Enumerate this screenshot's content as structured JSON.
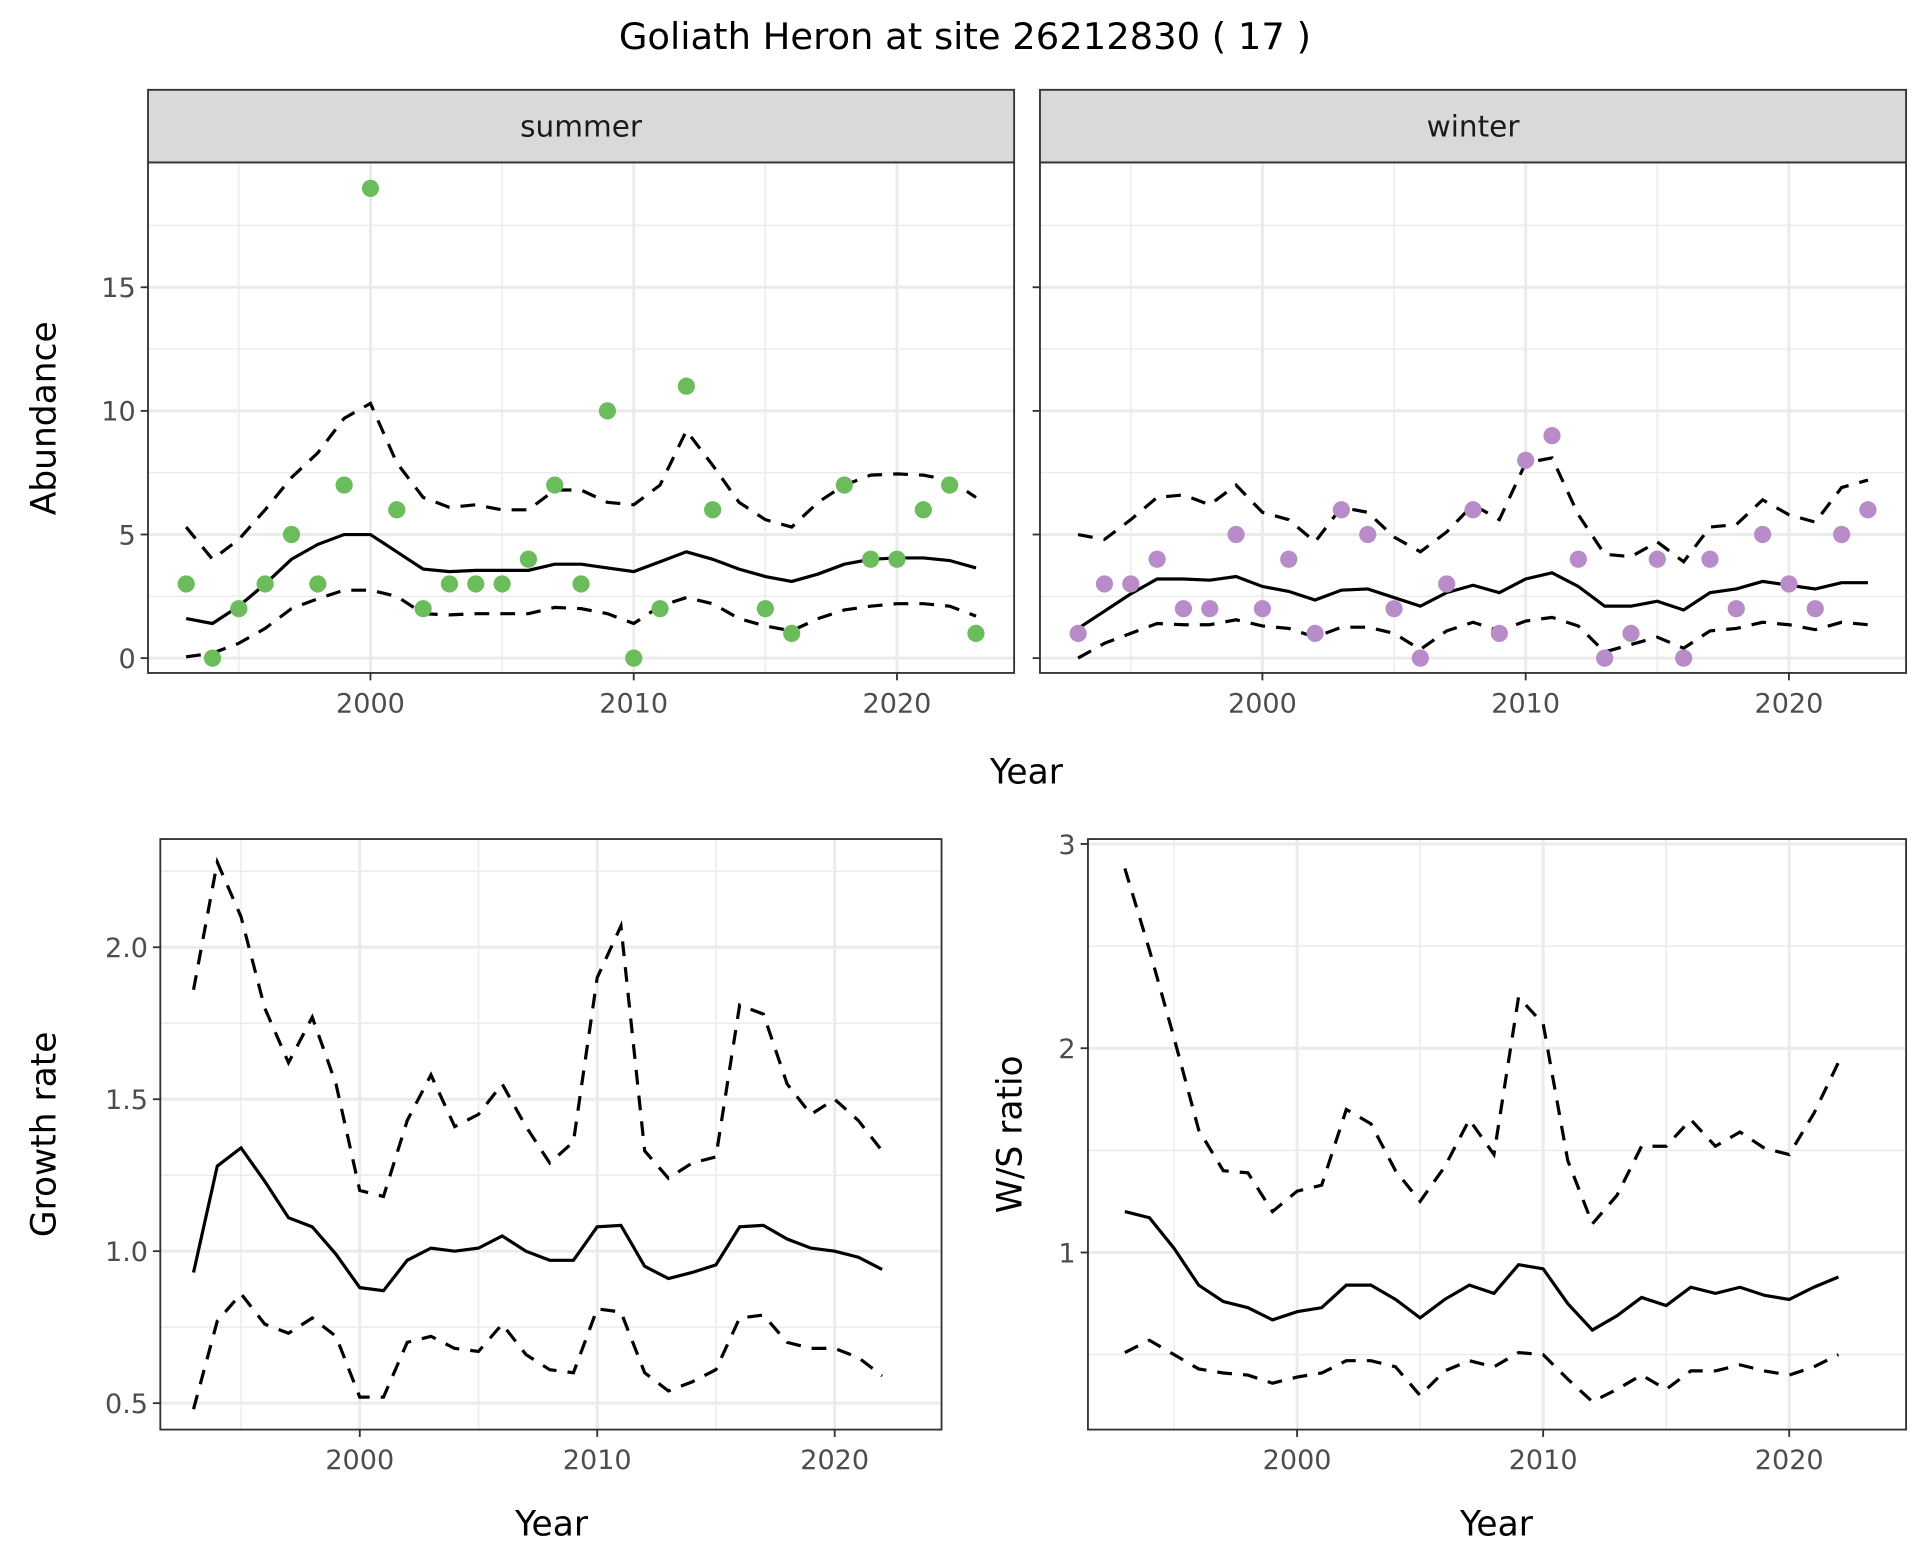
{
  "title": "Goliath Heron at site 26212830 ( 17 )",
  "colors": {
    "summer": "#6bbd5b",
    "winter": "#b88cc8",
    "line": "#000000",
    "strip": "#d9d9d9",
    "grid": "#ebebeb"
  },
  "chart_data": [
    {
      "type": "scatter+line",
      "panel": "summer",
      "strip_label": "summer",
      "xlabel": "Year",
      "ylabel": "Abundance",
      "xlim": [
        1991.55,
        2024.45
      ],
      "ylim": [
        -0.6,
        20.05
      ],
      "xticks": [
        2000,
        2010,
        2020
      ],
      "yticks": [
        0,
        5,
        10,
        15
      ],
      "grid": true,
      "points": {
        "x": [
          1993,
          1994,
          1995,
          1996,
          1997,
          1998,
          1999,
          2000,
          2001,
          2002,
          2003,
          2004,
          2005,
          2006,
          2007,
          2008,
          2009,
          2010,
          2011,
          2012,
          2013,
          2015,
          2016,
          2018,
          2019,
          2020,
          2021,
          2022,
          2023
        ],
        "y": [
          3,
          0,
          2,
          3,
          5,
          3,
          7,
          19,
          6,
          2,
          3,
          3,
          3,
          4,
          7,
          3,
          10,
          0,
          2,
          11,
          6,
          2,
          1,
          7,
          4,
          4,
          6,
          7,
          1
        ]
      },
      "x": [
        1993,
        1994,
        1995,
        1996,
        1997,
        1998,
        1999,
        2000,
        2001,
        2002,
        2003,
        2004,
        2005,
        2006,
        2007,
        2008,
        2009,
        2010,
        2011,
        2012,
        2013,
        2014,
        2015,
        2016,
        2017,
        2018,
        2019,
        2020,
        2021,
        2022,
        2023
      ],
      "mean": [
        1.6,
        1.4,
        2.1,
        3.0,
        4.0,
        4.6,
        5.0,
        5.0,
        4.3,
        3.6,
        3.5,
        3.55,
        3.55,
        3.55,
        3.8,
        3.8,
        3.65,
        3.5,
        3.9,
        4.3,
        4.0,
        3.6,
        3.3,
        3.1,
        3.4,
        3.8,
        4.0,
        4.05,
        4.05,
        3.95,
        3.65
      ],
      "upper": [
        5.3,
        4.0,
        4.8,
        6.0,
        7.3,
        8.3,
        9.7,
        10.3,
        7.9,
        6.5,
        6.1,
        6.2,
        6.0,
        6.0,
        6.8,
        6.8,
        6.3,
        6.2,
        7.0,
        9.2,
        7.8,
        6.3,
        5.6,
        5.3,
        6.3,
        7.0,
        7.4,
        7.45,
        7.4,
        7.2,
        6.5
      ],
      "lower": [
        0.05,
        0.2,
        0.6,
        1.2,
        2.0,
        2.4,
        2.75,
        2.75,
        2.5,
        1.8,
        1.75,
        1.8,
        1.8,
        1.8,
        2.05,
        2.0,
        1.8,
        1.4,
        2.1,
        2.45,
        2.2,
        1.6,
        1.3,
        1.1,
        1.6,
        1.95,
        2.1,
        2.2,
        2.2,
        2.1,
        1.7
      ]
    },
    {
      "type": "scatter+line",
      "panel": "winter",
      "strip_label": "winter",
      "xlabel": "Year",
      "ylabel": "Abundance",
      "xlim": [
        1991.55,
        2024.45
      ],
      "ylim": [
        -0.6,
        20.05
      ],
      "xticks": [
        2000,
        2010,
        2020
      ],
      "yticks": [
        0,
        5,
        10,
        15
      ],
      "grid": true,
      "points": {
        "x": [
          1993,
          1994,
          1995,
          1996,
          1997,
          1998,
          1999,
          2000,
          2001,
          2002,
          2003,
          2004,
          2005,
          2006,
          2007,
          2008,
          2009,
          2010,
          2011,
          2012,
          2013,
          2014,
          2015,
          2016,
          2017,
          2018,
          2019,
          2020,
          2021,
          2022,
          2023
        ],
        "y": [
          1,
          3,
          3,
          4,
          2,
          2,
          5,
          2,
          4,
          1,
          6,
          5,
          2,
          0,
          3,
          6,
          1,
          8,
          9,
          4,
          0,
          1,
          4,
          0,
          4,
          2,
          5,
          3,
          2,
          5,
          6
        ]
      },
      "x": [
        1993,
        1994,
        1995,
        1996,
        1997,
        1998,
        1999,
        2000,
        2001,
        2002,
        2003,
        2004,
        2005,
        2006,
        2007,
        2008,
        2009,
        2010,
        2011,
        2012,
        2013,
        2014,
        2015,
        2016,
        2017,
        2018,
        2019,
        2020,
        2021,
        2022,
        2023
      ],
      "mean": [
        1.2,
        1.9,
        2.6,
        3.2,
        3.2,
        3.15,
        3.3,
        2.9,
        2.7,
        2.35,
        2.75,
        2.8,
        2.45,
        2.1,
        2.65,
        2.95,
        2.65,
        3.2,
        3.45,
        2.9,
        2.1,
        2.1,
        2.3,
        1.95,
        2.65,
        2.8,
        3.1,
        2.95,
        2.8,
        3.05,
        3.05
      ],
      "upper": [
        5.0,
        4.8,
        5.6,
        6.5,
        6.6,
        6.2,
        7.0,
        5.9,
        5.6,
        4.7,
        6.1,
        5.9,
        4.9,
        4.3,
        5.1,
        6.2,
        5.6,
        7.9,
        8.1,
        5.8,
        4.2,
        4.1,
        4.7,
        3.9,
        5.3,
        5.4,
        6.4,
        5.8,
        5.5,
        6.9,
        7.2
      ],
      "lower": [
        0,
        0.6,
        1.0,
        1.4,
        1.35,
        1.35,
        1.55,
        1.3,
        1.2,
        0.85,
        1.25,
        1.25,
        1.0,
        0.35,
        1.1,
        1.45,
        1.1,
        1.5,
        1.65,
        1.3,
        0.25,
        0.55,
        0.85,
        0.4,
        1.1,
        1.2,
        1.45,
        1.35,
        1.15,
        1.45,
        1.35
      ]
    },
    {
      "type": "line",
      "panel": "growth",
      "xlabel": "Year",
      "ylabel": "Growth rate",
      "xlim": [
        1991.6,
        2024.5
      ],
      "ylim": [
        0.413,
        2.356
      ],
      "xticks": [
        2000,
        2010,
        2020
      ],
      "yticks": [
        0.5,
        1.0,
        1.5,
        2.0
      ],
      "ytick_labels": [
        "0.5",
        "1.0",
        "1.5",
        "2.0"
      ],
      "grid": true,
      "x": [
        1993,
        1994,
        1995,
        1996,
        1997,
        1998,
        1999,
        2000,
        2001,
        2002,
        2003,
        2004,
        2005,
        2006,
        2007,
        2008,
        2009,
        2010,
        2011,
        2012,
        2013,
        2014,
        2015,
        2016,
        2017,
        2018,
        2019,
        2020,
        2021,
        2022
      ],
      "mean": [
        0.93,
        1.28,
        1.34,
        1.23,
        1.11,
        1.08,
        0.99,
        0.88,
        0.87,
        0.97,
        1.01,
        1.0,
        1.01,
        1.05,
        1.0,
        0.97,
        0.97,
        1.08,
        1.085,
        0.95,
        0.91,
        0.93,
        0.955,
        1.08,
        1.085,
        1.04,
        1.01,
        1.0,
        0.98,
        0.94
      ],
      "upper": [
        1.86,
        2.28,
        2.1,
        1.8,
        1.62,
        1.77,
        1.55,
        1.2,
        1.18,
        1.43,
        1.58,
        1.41,
        1.45,
        1.55,
        1.41,
        1.29,
        1.36,
        1.9,
        2.07,
        1.33,
        1.24,
        1.29,
        1.31,
        1.81,
        1.78,
        1.55,
        1.45,
        1.5,
        1.43,
        1.33
      ],
      "lower": [
        0.48,
        0.77,
        0.86,
        0.76,
        0.73,
        0.78,
        0.72,
        0.52,
        0.52,
        0.7,
        0.72,
        0.68,
        0.67,
        0.76,
        0.66,
        0.61,
        0.6,
        0.81,
        0.8,
        0.6,
        0.54,
        0.57,
        0.61,
        0.78,
        0.79,
        0.7,
        0.68,
        0.68,
        0.65,
        0.59
      ]
    },
    {
      "type": "line",
      "panel": "ratio",
      "xlabel": "Year",
      "ylabel": "W/S ratio",
      "xlim": [
        1991.5,
        2024.75
      ],
      "ylim": [
        0.133,
        3.024
      ],
      "xticks": [
        2000,
        2010,
        2020
      ],
      "yticks": [
        1,
        2,
        3
      ],
      "ytick_labels": [
        "1",
        "2",
        "3"
      ],
      "grid": true,
      "x": [
        1993,
        1994,
        1995,
        1996,
        1997,
        1998,
        1999,
        2000,
        2001,
        2002,
        2003,
        2004,
        2005,
        2006,
        2007,
        2008,
        2009,
        2010,
        2011,
        2012,
        2013,
        2014,
        2015,
        2016,
        2017,
        2018,
        2019,
        2020,
        2021,
        2022
      ],
      "mean": [
        1.2,
        1.17,
        1.02,
        0.84,
        0.76,
        0.73,
        0.67,
        0.71,
        0.73,
        0.84,
        0.84,
        0.77,
        0.68,
        0.77,
        0.84,
        0.8,
        0.94,
        0.92,
        0.75,
        0.62,
        0.69,
        0.78,
        0.74,
        0.83,
        0.8,
        0.83,
        0.79,
        0.77,
        0.83,
        0.88
      ],
      "upper": [
        2.88,
        2.48,
        2.05,
        1.6,
        1.4,
        1.39,
        1.2,
        1.3,
        1.33,
        1.7,
        1.63,
        1.4,
        1.25,
        1.42,
        1.65,
        1.48,
        2.25,
        2.12,
        1.45,
        1.14,
        1.28,
        1.52,
        1.52,
        1.65,
        1.52,
        1.59,
        1.51,
        1.48,
        1.68,
        1.93
      ],
      "lower": [
        0.51,
        0.57,
        0.5,
        0.43,
        0.41,
        0.4,
        0.36,
        0.39,
        0.41,
        0.47,
        0.47,
        0.44,
        0.3,
        0.42,
        0.47,
        0.44,
        0.51,
        0.5,
        0.38,
        0.27,
        0.33,
        0.4,
        0.33,
        0.42,
        0.42,
        0.45,
        0.42,
        0.4,
        0.44,
        0.5
      ]
    }
  ]
}
